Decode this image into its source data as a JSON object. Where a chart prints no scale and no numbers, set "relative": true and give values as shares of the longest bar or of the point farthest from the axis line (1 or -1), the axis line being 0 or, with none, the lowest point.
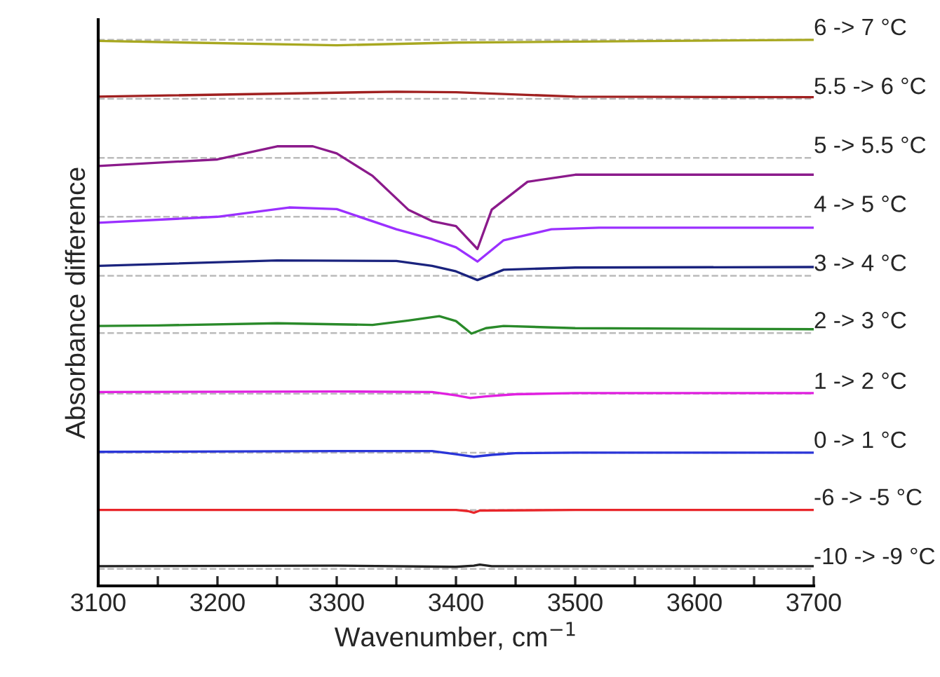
{
  "chart_data": {
    "type": "line",
    "relative": true,
    "xlabel": "Wavenumber, cm$^{−1}$",
    "ylabel": "Absorbance difference",
    "xlim": [
      3100,
      3700
    ],
    "xticks": [
      3100,
      {
        "value": 3150,
        "label": null
      },
      3200,
      {
        "value": 3250,
        "label": null
      },
      3300,
      {
        "value": 3350,
        "label": null
      },
      3400,
      {
        "value": 3450,
        "label": null
      },
      3500,
      {
        "value": 3550,
        "label": null
      },
      3600,
      {
        "value": 3650,
        "label": null
      },
      3700
    ],
    "grid": false,
    "legend": false,
    "marker": "none",
    "line_style": "solid",
    "tick_labels": "x",
    "series": [
      {
        "name": "-10 -> -9 °C",
        "color": "#222222",
        "x": [
          3100,
          3300,
          3400,
          3415,
          3420,
          3430,
          3500,
          3700
        ],
        "values": [
          0.036,
          0.037,
          0.035,
          0.037,
          0.039,
          0.036,
          0.036,
          0.036
        ]
      },
      {
        "name": "-6 -> -5 °C",
        "color": "#e8262a",
        "x": [
          3100,
          3300,
          3400,
          3410,
          3415,
          3420,
          3500,
          3700
        ],
        "values": [
          0.139,
          0.139,
          0.139,
          0.137,
          0.134,
          0.138,
          0.139,
          0.139
        ]
      },
      {
        "name": "0 -> 1 °C",
        "color": "#2a35d8",
        "x": [
          3100,
          3300,
          3380,
          3400,
          3415,
          3430,
          3450,
          3500,
          3700
        ],
        "values": [
          0.2455,
          0.247,
          0.247,
          0.241,
          0.2365,
          0.24,
          0.243,
          0.244,
          0.244
        ]
      },
      {
        "name": "1 -> 2 °C",
        "color": "#e020e0",
        "x": [
          3100,
          3300,
          3380,
          3400,
          3412,
          3425,
          3450,
          3500,
          3700
        ],
        "values": [
          0.355,
          0.356,
          0.355,
          0.349,
          0.344,
          0.347,
          0.351,
          0.353,
          0.353
        ]
      },
      {
        "name": "2 -> 3 °C",
        "color": "#2a8a2a",
        "x": [
          3100,
          3150,
          3250,
          3300,
          3330,
          3360,
          3386,
          3400,
          3413,
          3425,
          3440,
          3500,
          3700
        ],
        "values": [
          0.476,
          0.477,
          0.481,
          0.479,
          0.478,
          0.486,
          0.494,
          0.485,
          0.462,
          0.472,
          0.476,
          0.472,
          0.47
        ]
      },
      {
        "name": "3 -> 4 °C",
        "color": "#1a237e",
        "x": [
          3100,
          3250,
          3350,
          3380,
          3400,
          3418,
          3440,
          3500,
          3700
        ],
        "values": [
          0.586,
          0.596,
          0.595,
          0.586,
          0.576,
          0.56,
          0.579,
          0.583,
          0.584
        ]
      },
      {
        "name": "4 -> 5 °C",
        "color": "#9b30ff",
        "x": [
          3100,
          3200,
          3260,
          3300,
          3350,
          3380,
          3400,
          3418,
          3440,
          3480,
          3520,
          3700
        ],
        "values": [
          0.665,
          0.676,
          0.693,
          0.69,
          0.653,
          0.635,
          0.62,
          0.594,
          0.633,
          0.653,
          0.656,
          0.656
        ]
      },
      {
        "name": "5 -> 5.5 °C",
        "color": "#8b1a8b",
        "x": [
          3100,
          3200,
          3250,
          3280,
          3300,
          3330,
          3360,
          3380,
          3400,
          3418,
          3430,
          3460,
          3500,
          3700
        ],
        "values": [
          0.769,
          0.781,
          0.805,
          0.805,
          0.792,
          0.751,
          0.689,
          0.668,
          0.659,
          0.617,
          0.689,
          0.74,
          0.753,
          0.753
        ]
      },
      {
        "name": "5.5 -> 6 °C",
        "color": "#a02020",
        "x": [
          3100,
          3350,
          3400,
          3500,
          3700
        ],
        "values": [
          0.896,
          0.905,
          0.904,
          0.896,
          0.895
        ]
      },
      {
        "name": "6 -> 7 °C",
        "color": "#a8a820",
        "x": [
          3100,
          3300,
          3400,
          3700
        ],
        "values": [
          0.998,
          0.99,
          0.995,
          1.0
        ]
      }
    ],
    "ref_lines": [
      {
        "axis": "y",
        "value": 0.031,
        "color": "#bbbbbb",
        "line_style": "dashed"
      },
      {
        "axis": "y",
        "value": 0.139,
        "color": "#bbbbbb",
        "line_style": "dashed"
      },
      {
        "axis": "y",
        "value": 0.244,
        "color": "#bbbbbb",
        "line_style": "dashed"
      },
      {
        "axis": "y",
        "value": 0.352,
        "color": "#bbbbbb",
        "line_style": "dashed"
      },
      {
        "axis": "y",
        "value": 0.463,
        "color": "#bbbbbb",
        "line_style": "dashed"
      },
      {
        "axis": "y",
        "value": 0.568,
        "color": "#bbbbbb",
        "line_style": "dashed"
      },
      {
        "axis": "y",
        "value": 0.676,
        "color": "#bbbbbb",
        "line_style": "dashed"
      },
      {
        "axis": "y",
        "value": 0.784,
        "color": "#bbbbbb",
        "line_style": "dashed"
      },
      {
        "axis": "y",
        "value": 0.892,
        "color": "#bbbbbb",
        "line_style": "dashed"
      },
      {
        "axis": "y",
        "value": 1.0,
        "color": "#bbbbbb",
        "line_style": "dashed"
      }
    ]
  }
}
